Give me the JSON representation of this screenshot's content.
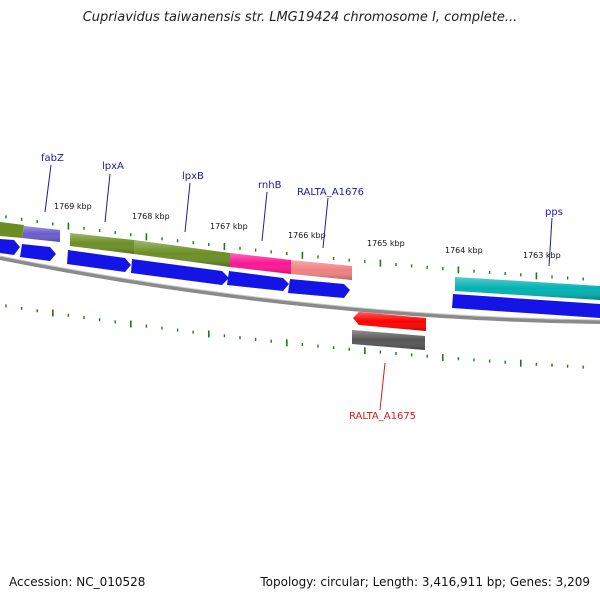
{
  "title": "Cupriavidus taiwanensis str. LMG19424 chromosome I, complete...",
  "footer": {
    "accession": "Accession: NC_010528",
    "topology": "Topology: circular; Length: 3,416,911 bp; Genes: 3,209"
  },
  "colors": {
    "cds_blue": "#1414e6",
    "tick_green": "#1a7a1a",
    "label_blue": "#1a1aa8",
    "label_red": "#d61a1a",
    "backbone_gray": "#888888"
  },
  "scale_labels": [
    "1769 kbp",
    "1768 kbp",
    "1767 kbp",
    "1766 kbp",
    "1765 kbp",
    "1764 kbp",
    "1763 kbp"
  ],
  "gene_labels": [
    {
      "text": "fabZ",
      "color": "#1a1aa8"
    },
    {
      "text": "lpxA",
      "color": "#1a1aa8"
    },
    {
      "text": "lpxB",
      "color": "#1a1aa8"
    },
    {
      "text": "rnhB",
      "color": "#1a1aa8"
    },
    {
      "text": "RALTA_A1676",
      "color": "#1a1aa8"
    },
    {
      "text": "pps",
      "color": "#1a1aa8"
    },
    {
      "text": "RALTA_A1675",
      "color": "#d61a1a"
    }
  ],
  "features": [
    {
      "name": "fabZ-feature",
      "color": "#6a5acd"
    },
    {
      "name": "lpxA-feature",
      "color": "#6b8e23"
    },
    {
      "name": "lpxB-feature",
      "color": "#6b8e23"
    },
    {
      "name": "rnhB-feature",
      "color": "#ff1493"
    },
    {
      "name": "ralta-a1676-feature",
      "color": "#f08080"
    },
    {
      "name": "pps-feature",
      "color": "#00b2b2"
    },
    {
      "name": "ralta-a1675-feature",
      "color": "#ff0000"
    }
  ]
}
